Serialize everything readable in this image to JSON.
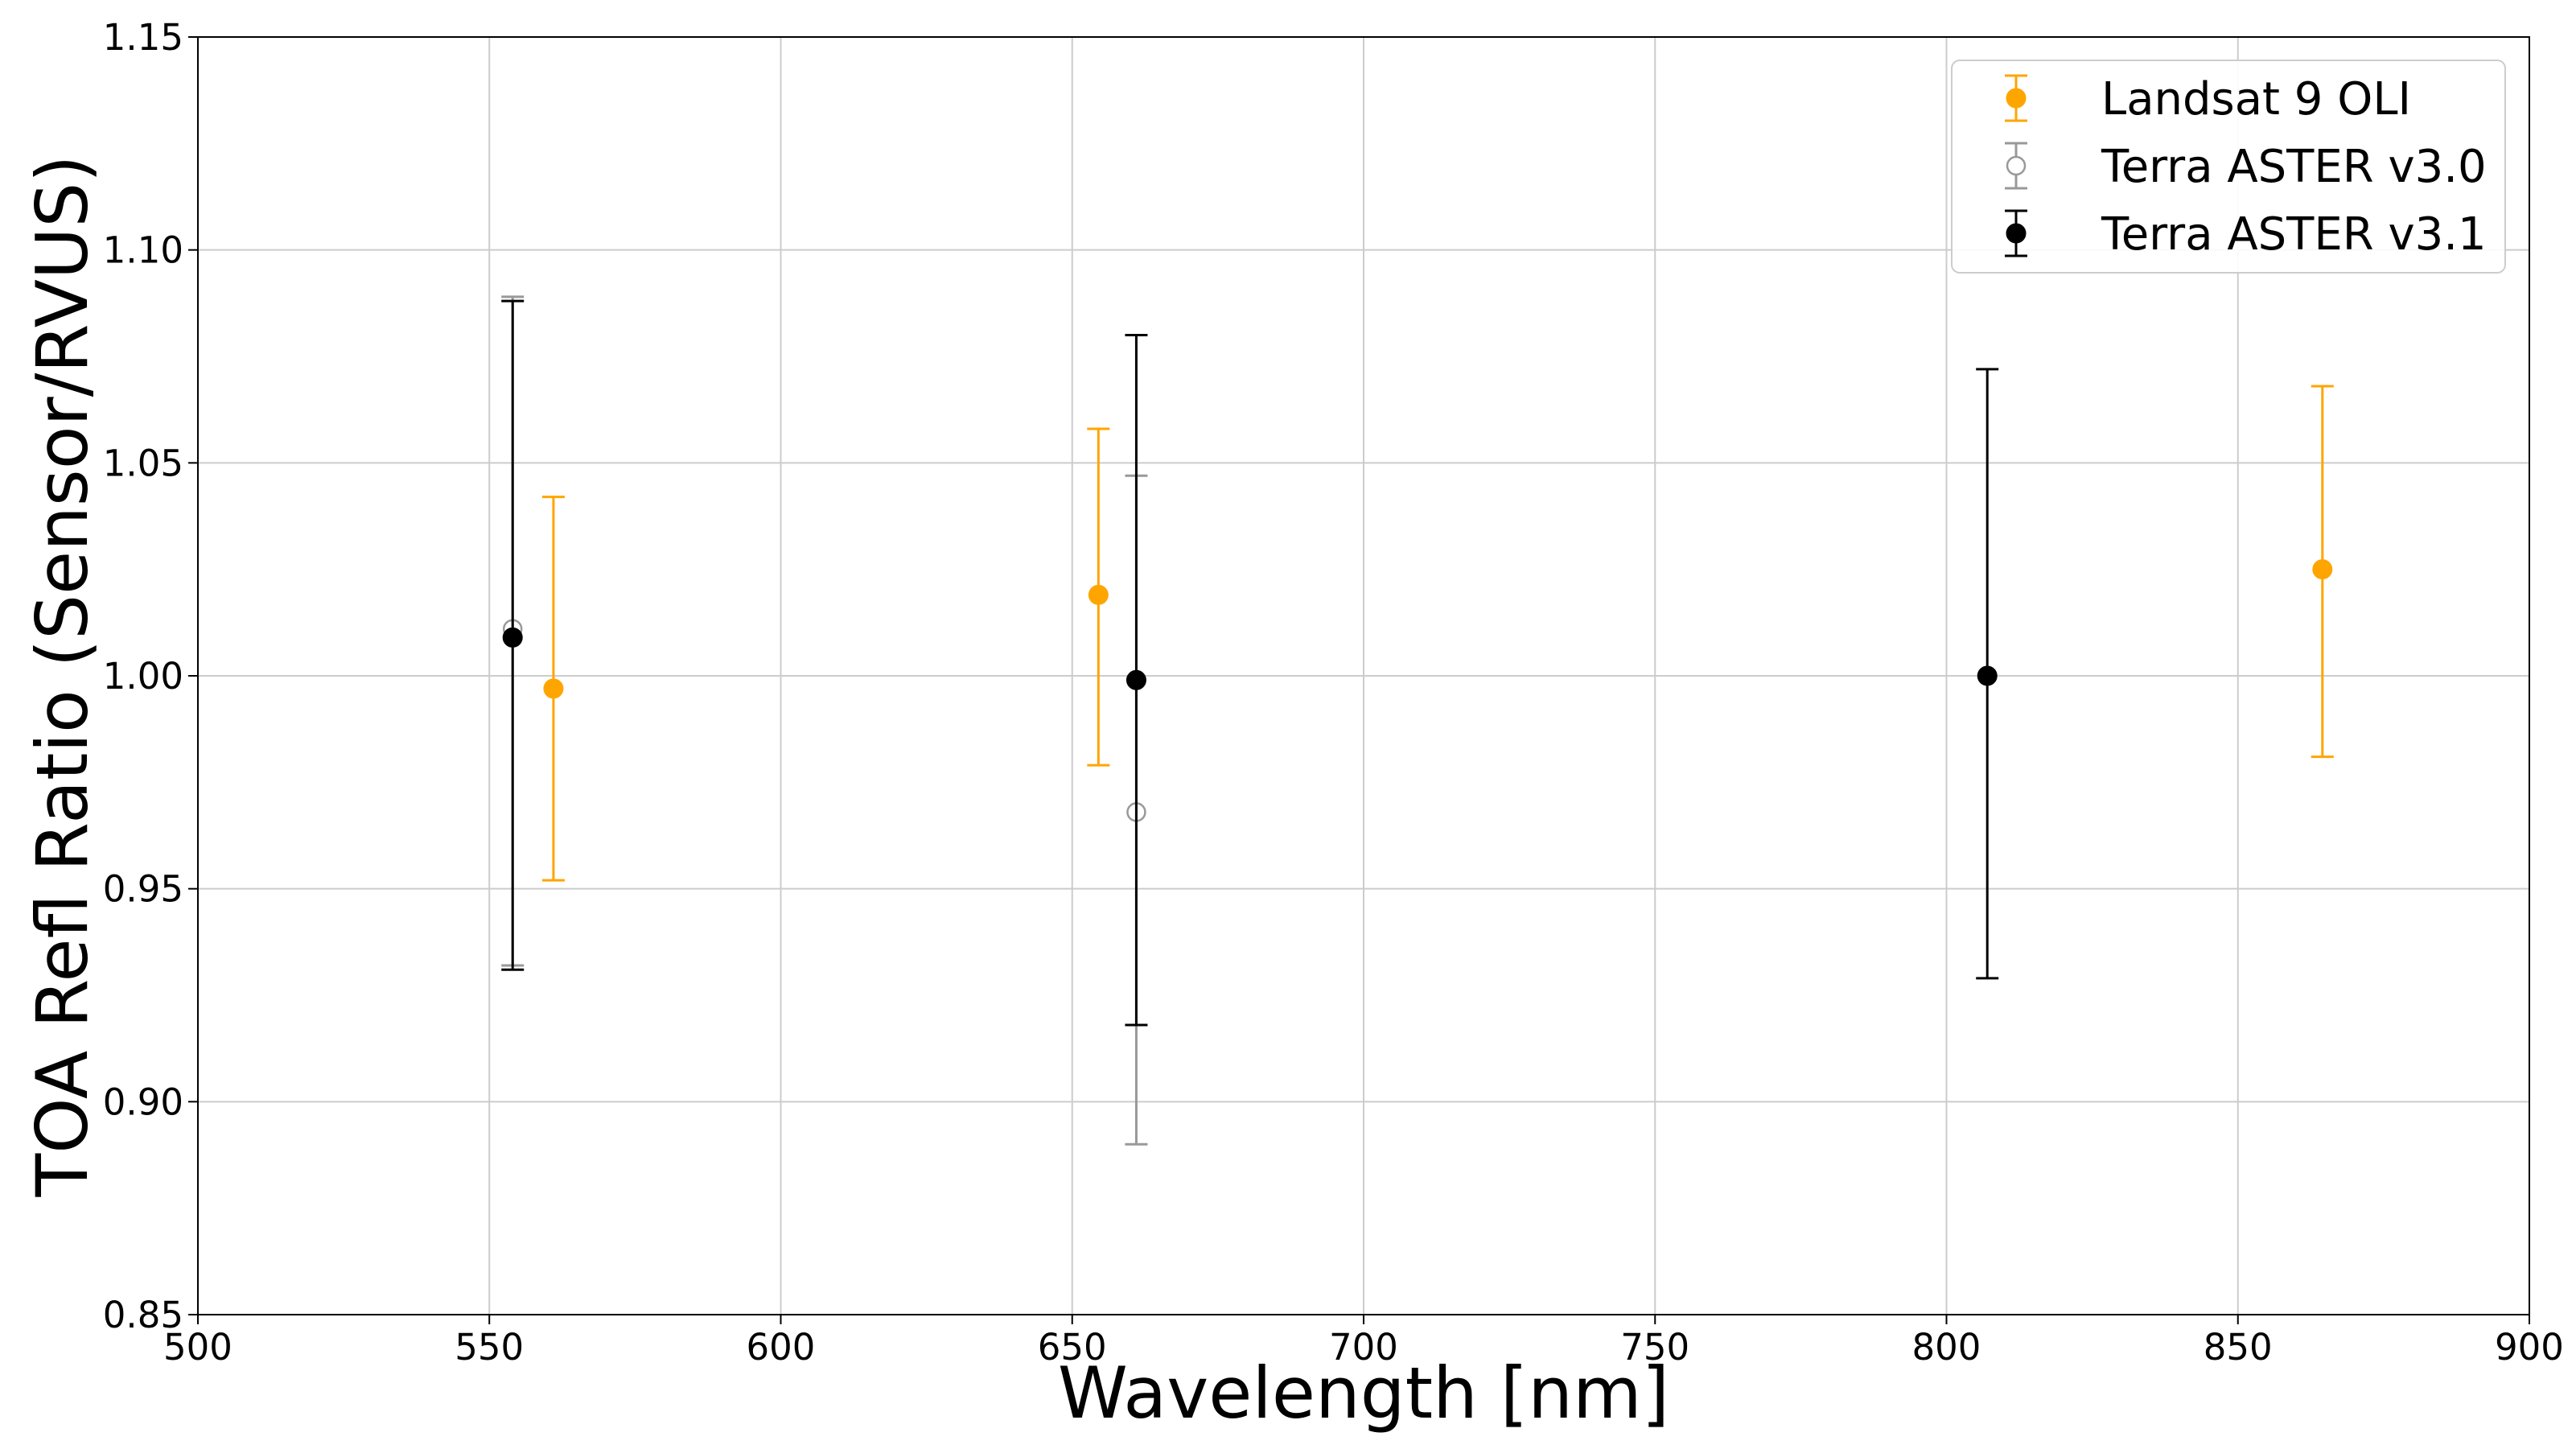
{
  "chart_data": {
    "type": "scatter",
    "title": "",
    "xlabel": "Wavelength [nm]",
    "ylabel": "TOA Refl Ratio (Sensor/RVUS)",
    "xlim": [
      500,
      900
    ],
    "ylim": [
      0.85,
      1.15
    ],
    "xticks": [
      500,
      550,
      600,
      650,
      700,
      750,
      800,
      850,
      900
    ],
    "yticks": [
      0.85,
      0.9,
      0.95,
      1.0,
      1.05,
      1.1,
      1.15
    ],
    "xtick_labels": [
      "500",
      "550",
      "600",
      "650",
      "700",
      "750",
      "800",
      "850",
      "900"
    ],
    "ytick_labels": [
      "0.85",
      "0.90",
      "0.95",
      "1.00",
      "1.05",
      "1.10",
      "1.15"
    ],
    "grid": true,
    "legend_position": "top-right",
    "series": [
      {
        "name": "Landsat 9 OLI",
        "color": "#FFA500",
        "marker": "filled-circle",
        "points": [
          {
            "x": 561,
            "y": 0.997,
            "yerr_low": 0.952,
            "yerr_high": 1.042
          },
          {
            "x": 654.5,
            "y": 1.019,
            "yerr_low": 0.979,
            "yerr_high": 1.058
          },
          {
            "x": 864.5,
            "y": 1.025,
            "yerr_low": 0.981,
            "yerr_high": 1.068
          }
        ]
      },
      {
        "name": "Terra ASTER v3.0",
        "color": "#999999",
        "marker": "open-circle",
        "points": [
          {
            "x": 554,
            "y": 1.011,
            "yerr_low": 0.932,
            "yerr_high": 1.089
          },
          {
            "x": 661,
            "y": 0.968,
            "yerr_low": 0.89,
            "yerr_high": 1.047
          }
        ]
      },
      {
        "name": "Terra ASTER v3.1",
        "color": "#000000",
        "marker": "filled-circle",
        "points": [
          {
            "x": 554,
            "y": 1.009,
            "yerr_low": 0.931,
            "yerr_high": 1.088
          },
          {
            "x": 661,
            "y": 0.999,
            "yerr_low": 0.918,
            "yerr_high": 1.08
          },
          {
            "x": 807,
            "y": 1.0,
            "yerr_low": 0.929,
            "yerr_high": 1.072
          }
        ]
      }
    ]
  }
}
